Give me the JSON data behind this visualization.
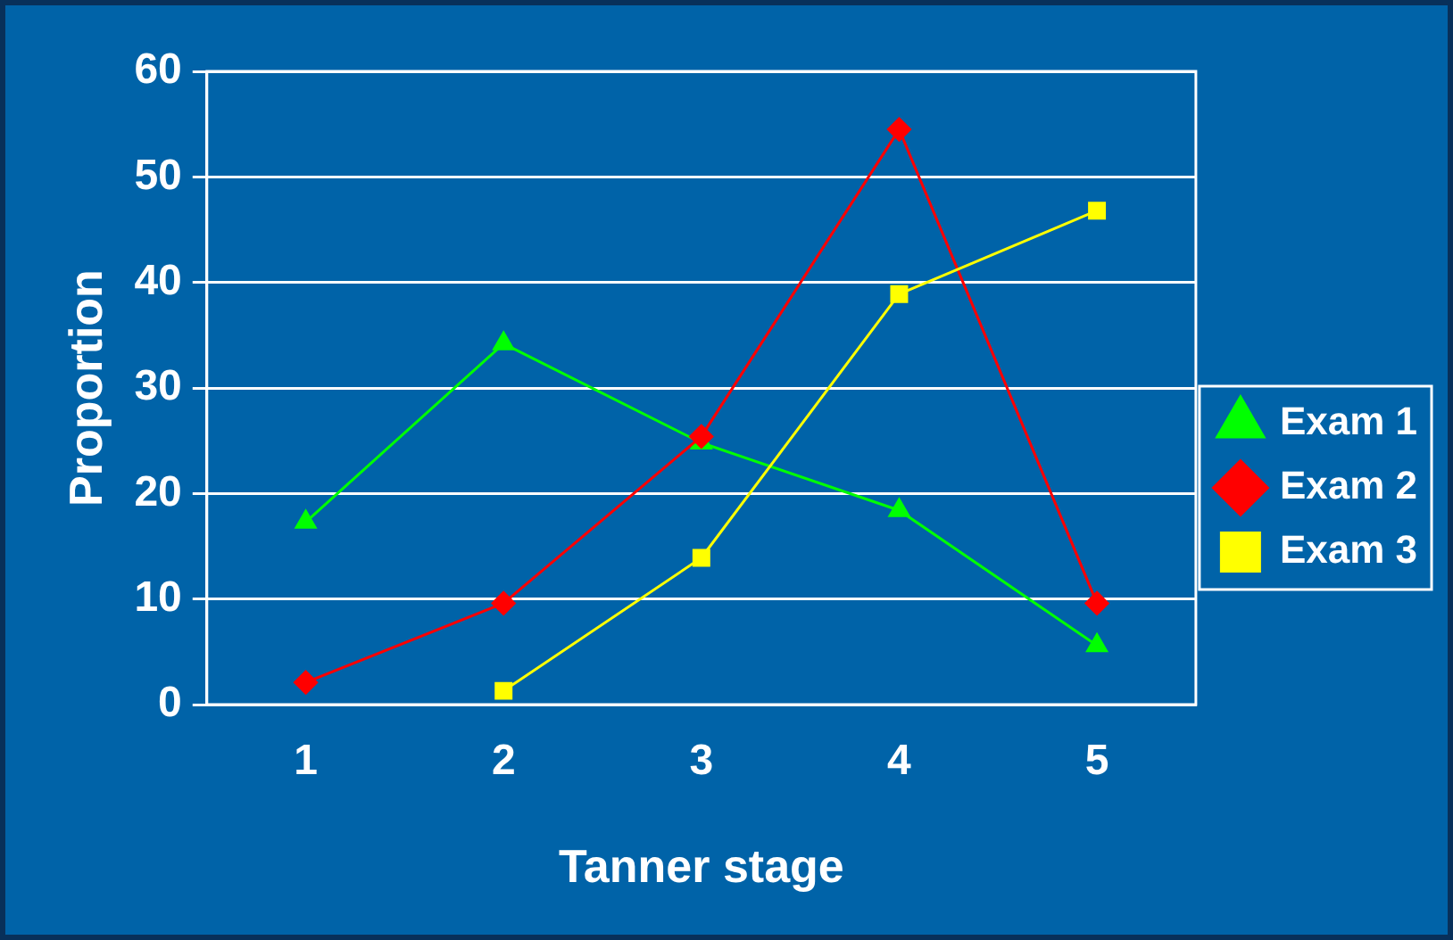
{
  "chart_data": {
    "type": "line",
    "xlabel": "Tanner stage",
    "ylabel": "Proportion",
    "categories": [
      "1",
      "2",
      "3",
      "4",
      "5"
    ],
    "series": [
      {
        "name": "Exam 1",
        "color": "#00ff00",
        "marker": "triangle",
        "values": [
          17.3,
          34.2,
          24.8,
          18.4,
          5.6
        ]
      },
      {
        "name": "Exam 2",
        "color": "#ff0000",
        "marker": "diamond",
        "values": [
          2.1,
          9.6,
          25.4,
          54.5,
          9.6
        ]
      },
      {
        "name": "Exam 3",
        "color": "#ffff00",
        "marker": "square",
        "values": [
          null,
          1.3,
          13.9,
          38.9,
          46.8
        ]
      }
    ],
    "ylim": [
      0,
      60
    ],
    "yticks": [
      0,
      10,
      20,
      30,
      40,
      50,
      60
    ],
    "grid": "y",
    "legend": "right",
    "line_style": "solid"
  }
}
